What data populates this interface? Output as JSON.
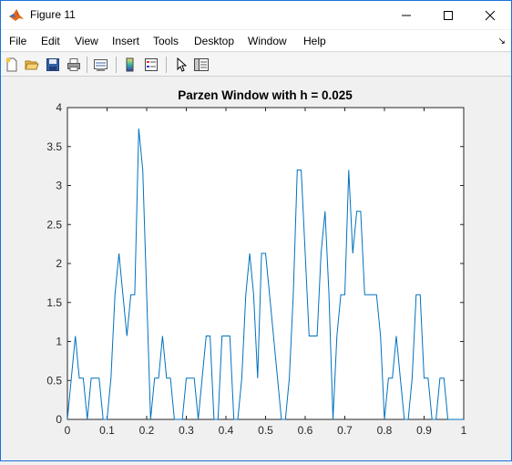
{
  "window": {
    "title": "Figure 11"
  },
  "menu": {
    "items": [
      "File",
      "Edit",
      "View",
      "Insert",
      "Tools",
      "Desktop",
      "Window",
      "Help"
    ]
  },
  "toolbar": {
    "buttons": [
      "new-figure-icon",
      "open-file-icon",
      "save-icon",
      "print-icon",
      "link-plot-icon",
      "colorbar-icon",
      "legend-icon",
      "edit-plot-arrow-icon",
      "property-inspector-icon"
    ]
  },
  "colors": {
    "line": "#0072bd",
    "accent": "#1a73d9"
  },
  "chart_data": {
    "type": "line",
    "title": "Parzen Window with h = 0.025",
    "xlabel": "",
    "ylabel": "",
    "xlim": [
      0,
      1
    ],
    "ylim": [
      0,
      4
    ],
    "xticks": [
      "0",
      "0.1",
      "0.2",
      "0.3",
      "0.4",
      "0.5",
      "0.6",
      "0.7",
      "0.8",
      "0.9",
      "1"
    ],
    "yticks": [
      "0",
      "0.5",
      "1",
      "1.5",
      "2",
      "2.5",
      "3",
      "3.5",
      "4"
    ],
    "grid": false,
    "series": [
      {
        "x": [
          0,
          0.02,
          0.03,
          0.04,
          0.05,
          0.06,
          0.08,
          0.09,
          0.1,
          0.11,
          0.12,
          0.13,
          0.14,
          0.15,
          0.16,
          0.17,
          0.18,
          0.19,
          0.2,
          0.21,
          0.22,
          0.23,
          0.24,
          0.25,
          0.26,
          0.27,
          0.28,
          0.29,
          0.3,
          0.31,
          0.32,
          0.33,
          0.34,
          0.35,
          0.36,
          0.37,
          0.38,
          0.39,
          0.4,
          0.41,
          0.42,
          0.43,
          0.44,
          0.45,
          0.46,
          0.47,
          0.48,
          0.49,
          0.5,
          0.51,
          0.52,
          0.53,
          0.54,
          0.55,
          0.56,
          0.57,
          0.58,
          0.59,
          0.6,
          0.61,
          0.62,
          0.63,
          0.64,
          0.65,
          0.66,
          0.67,
          0.68,
          0.69,
          0.7,
          0.71,
          0.72,
          0.73,
          0.74,
          0.75,
          0.76,
          0.77,
          0.78,
          0.79,
          0.8,
          0.81,
          0.82,
          0.83,
          0.84,
          0.85,
          0.86,
          0.87,
          0.88,
          0.89,
          0.9,
          0.91,
          0.92,
          0.93,
          0.94,
          0.95,
          0.96,
          0.97,
          0.98,
          0.99,
          1.0
        ],
        "values": [
          0,
          1.07,
          0.53,
          0.53,
          0,
          0.53,
          0.53,
          0,
          0,
          0.53,
          1.6,
          2.13,
          1.6,
          1.07,
          1.6,
          1.6,
          3.73,
          3.2,
          1.6,
          0,
          0.53,
          0.53,
          1.07,
          0.53,
          0.53,
          0,
          0,
          0,
          0.53,
          0.53,
          0.53,
          0,
          0.53,
          1.07,
          1.07,
          0,
          0,
          1.07,
          1.07,
          1.07,
          0,
          0,
          0.53,
          1.6,
          2.13,
          1.6,
          0.53,
          2.13,
          2.13,
          1.6,
          1.07,
          0.53,
          0,
          0,
          0.53,
          1.6,
          3.2,
          3.2,
          2.13,
          1.07,
          1.07,
          1.07,
          2.13,
          2.67,
          1.6,
          0,
          1.07,
          1.6,
          1.6,
          3.2,
          2.13,
          2.67,
          2.67,
          1.6,
          1.6,
          1.6,
          1.6,
          1.07,
          0,
          0.53,
          0.53,
          1.07,
          0.53,
          0,
          0,
          0.53,
          1.6,
          1.6,
          0.53,
          0.53,
          0,
          0,
          0.53,
          0.53,
          0,
          0,
          0,
          0,
          0
        ]
      }
    ]
  }
}
